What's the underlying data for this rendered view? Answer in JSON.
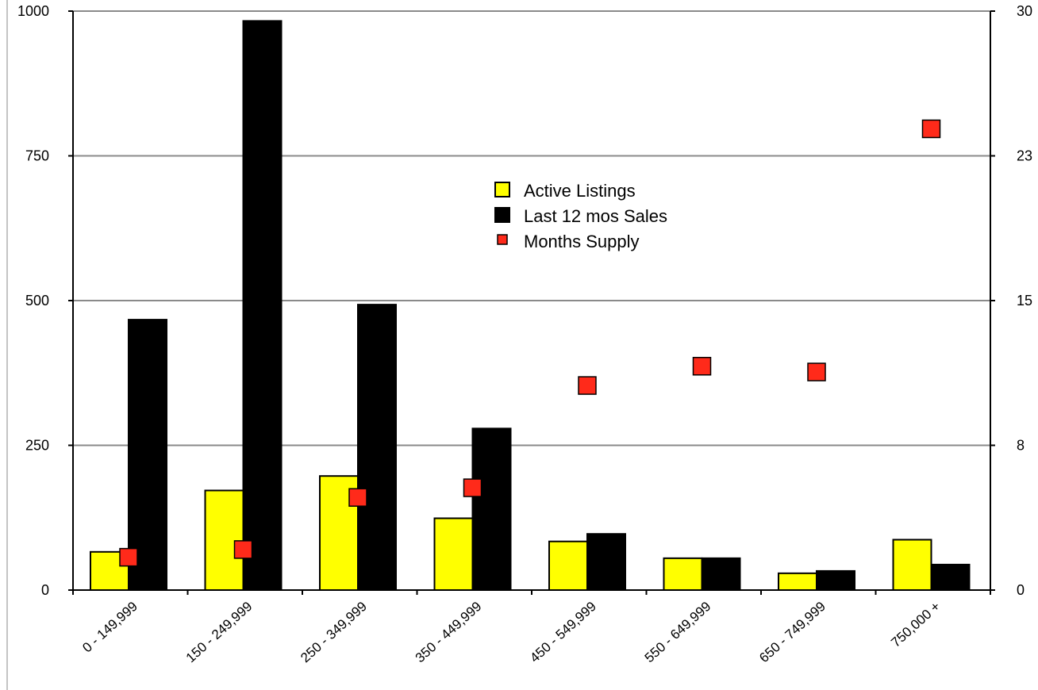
{
  "chart_data": {
    "type": "bar",
    "title": "",
    "xlabel": "",
    "ylabel": "",
    "categories": [
      "0 - 149,999",
      "150 - 249,999",
      "250 - 349,999",
      "350 - 449,999",
      "450 - 549,999",
      "550 - 649,999",
      "650 - 749,999",
      "750,000 +"
    ],
    "series": [
      {
        "name": "Active Listings",
        "axis": "left",
        "kind": "bar",
        "color": "#ffff00",
        "values": [
          66,
          172,
          197,
          124,
          84,
          55,
          29,
          87
        ]
      },
      {
        "name": "Last 12 mos Sales",
        "axis": "left",
        "kind": "bar",
        "color": "#000000",
        "values": [
          467,
          983,
          493,
          279,
          97,
          55,
          33,
          44
        ]
      },
      {
        "name": "Months Supply",
        "axis": "right",
        "kind": "marker",
        "color": "#ff2a1a",
        "values": [
          1.7,
          2.1,
          4.8,
          5.3,
          10.6,
          11.6,
          11.3,
          23.9
        ]
      }
    ],
    "ylim": [
      0,
      1000
    ],
    "y_ticks": [
      "0",
      "250",
      "500",
      "750",
      "1000"
    ],
    "y2lim": [
      0,
      30
    ],
    "y2_ticks": [
      "0",
      "8",
      "15",
      "23",
      "30"
    ],
    "grid": true,
    "legend_placement": "center-top"
  }
}
